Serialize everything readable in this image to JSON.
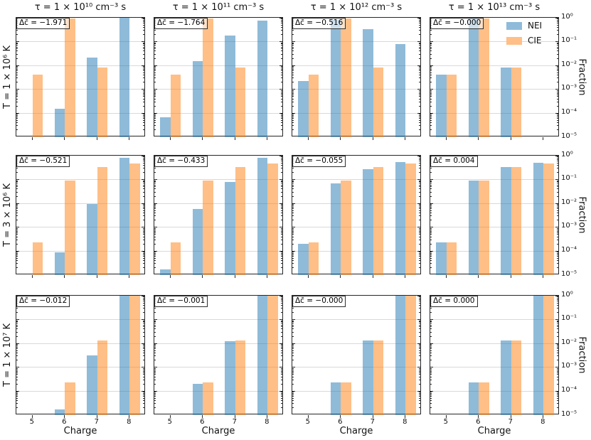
{
  "figure": {
    "col_titles": [
      "τ = 1 × 10¹⁰ cm⁻³ s",
      "τ = 1 × 10¹¹ cm⁻³ s",
      "τ = 1 × 10¹² cm⁻³ s",
      "τ = 1 × 10¹³ cm⁻³ s"
    ],
    "row_labels": [
      "T = 1 × 10⁶ K",
      "T = 3 × 10⁶ K",
      "T = 1 × 10⁷ K"
    ],
    "xlabel": "Charge",
    "ylabel_right": "Fraction",
    "x_tick_labels": [
      "5",
      "6",
      "7",
      "8"
    ],
    "y_tick_labels": [
      "10⁰",
      "10⁻¹",
      "10⁻²",
      "10⁻³",
      "10⁻⁴",
      "10⁻⁵"
    ],
    "legend": {
      "items": [
        {
          "label": "NEI",
          "color": "#8fbbda"
        },
        {
          "label": "CIE",
          "color": "#ffbf87"
        }
      ]
    },
    "colors": {
      "nei_fill": "rgba(31,119,180,0.5)",
      "cie_fill": "rgba(255,127,14,0.5)",
      "grid": "#d9d9d9",
      "spine": "#262626"
    }
  },
  "chart_data": {
    "type": "bar",
    "y_scale": "log",
    "ylim": [
      1e-05,
      1
    ],
    "xlim": [
      4.5,
      8.5
    ],
    "grid": true,
    "categories": [
      5,
      6,
      7,
      8
    ],
    "series_names": [
      "NEI",
      "CIE"
    ],
    "legend_position": "top-right of last top panel",
    "panels": [
      {
        "row": 0,
        "col": 0,
        "title": "τ = 1 × 10¹⁰ cm⁻³ s",
        "row_label": "T = 1 × 10⁶ K",
        "annotation": "Δc̄ = −1.971",
        "NEI": [
          null,
          0.00016,
          0.021,
          1.0
        ],
        "CIE": [
          0.0042,
          0.95,
          0.0085,
          null
        ]
      },
      {
        "row": 0,
        "col": 1,
        "title": "τ = 1 × 10¹¹ cm⁻³ s",
        "row_label": "T = 1 × 10⁶ K",
        "annotation": "Δc̄ = −1.764",
        "NEI": [
          7e-05,
          0.015,
          0.18,
          0.74
        ],
        "CIE": [
          0.0042,
          0.95,
          0.0085,
          null
        ]
      },
      {
        "row": 0,
        "col": 2,
        "title": "τ = 1 × 10¹² cm⁻³ s",
        "row_label": "T = 1 × 10⁶ K",
        "annotation": "Δc̄ = −0.516",
        "NEI": [
          0.0022,
          0.88,
          0.34,
          0.081
        ],
        "CIE": [
          0.0042,
          0.95,
          0.0085,
          null
        ]
      },
      {
        "row": 0,
        "col": 3,
        "title": "τ = 1 × 10¹³ cm⁻³ s",
        "row_label": "T = 1 × 10⁶ K",
        "annotation": "Δc̄ = −0.000",
        "NEI": [
          0.0042,
          0.95,
          0.0085,
          null
        ],
        "CIE": [
          0.0042,
          0.95,
          0.0085,
          null
        ]
      },
      {
        "row": 1,
        "col": 0,
        "title": "τ = 1 × 10¹⁰ cm⁻³ s",
        "row_label": "T = 3 × 10⁶ K",
        "annotation": "Δc̄ = −0.521",
        "NEI": [
          null,
          9e-05,
          0.0095,
          0.84
        ],
        "CIE": [
          0.00024,
          0.09,
          0.33,
          0.48
        ]
      },
      {
        "row": 1,
        "col": 1,
        "title": "τ = 1 × 10¹¹ cm⁻³ s",
        "row_label": "T = 3 × 10⁶ K",
        "annotation": "Δc̄ = −0.433",
        "NEI": [
          1.7e-05,
          0.0059,
          0.077,
          0.79
        ],
        "CIE": [
          0.00024,
          0.09,
          0.33,
          0.48
        ]
      },
      {
        "row": 1,
        "col": 2,
        "title": "τ = 1 × 10¹² cm⁻³ s",
        "row_label": "T = 3 × 10⁶ K",
        "annotation": "Δc̄ = −0.055",
        "NEI": [
          0.00021,
          0.068,
          0.28,
          0.53
        ],
        "CIE": [
          0.00024,
          0.09,
          0.33,
          0.48
        ]
      },
      {
        "row": 1,
        "col": 3,
        "title": "τ = 1 × 10¹³ cm⁻³ s",
        "row_label": "T = 3 × 10⁶ K",
        "annotation": "Δc̄ = 0.004",
        "NEI": [
          0.00024,
          0.088,
          0.34,
          0.49
        ],
        "CIE": [
          0.00024,
          0.09,
          0.33,
          0.48
        ]
      },
      {
        "row": 2,
        "col": 0,
        "title": "τ = 1 × 10¹⁰ cm⁻³ s",
        "row_label": "T = 1 × 10⁷ K",
        "annotation": "Δc̄ = −0.012",
        "NEI": [
          null,
          1.7e-05,
          0.0031,
          0.98
        ],
        "CIE": [
          null,
          0.00023,
          0.0135,
          0.985
        ]
      },
      {
        "row": 2,
        "col": 1,
        "title": "τ = 1 × 10¹¹ cm⁻³ s",
        "row_label": "T = 1 × 10⁷ K",
        "annotation": "Δc̄ = −0.001",
        "NEI": [
          null,
          0.0002,
          0.0125,
          0.98
        ],
        "CIE": [
          null,
          0.00023,
          0.0135,
          0.985
        ]
      },
      {
        "row": 2,
        "col": 2,
        "title": "τ = 1 × 10¹² cm⁻³ s",
        "row_label": "T = 1 × 10⁷ K",
        "annotation": "Δc̄ = −0.000",
        "NEI": [
          null,
          0.00023,
          0.0135,
          0.985
        ],
        "CIE": [
          null,
          0.00023,
          0.0135,
          0.985
        ]
      },
      {
        "row": 2,
        "col": 3,
        "title": "τ = 1 × 10¹³ cm⁻³ s",
        "row_label": "T = 1 × 10⁷ K",
        "annotation": "Δc̄ = 0.000",
        "NEI": [
          null,
          0.00023,
          0.0135,
          0.985
        ],
        "CIE": [
          null,
          0.00023,
          0.0135,
          0.985
        ]
      }
    ]
  }
}
